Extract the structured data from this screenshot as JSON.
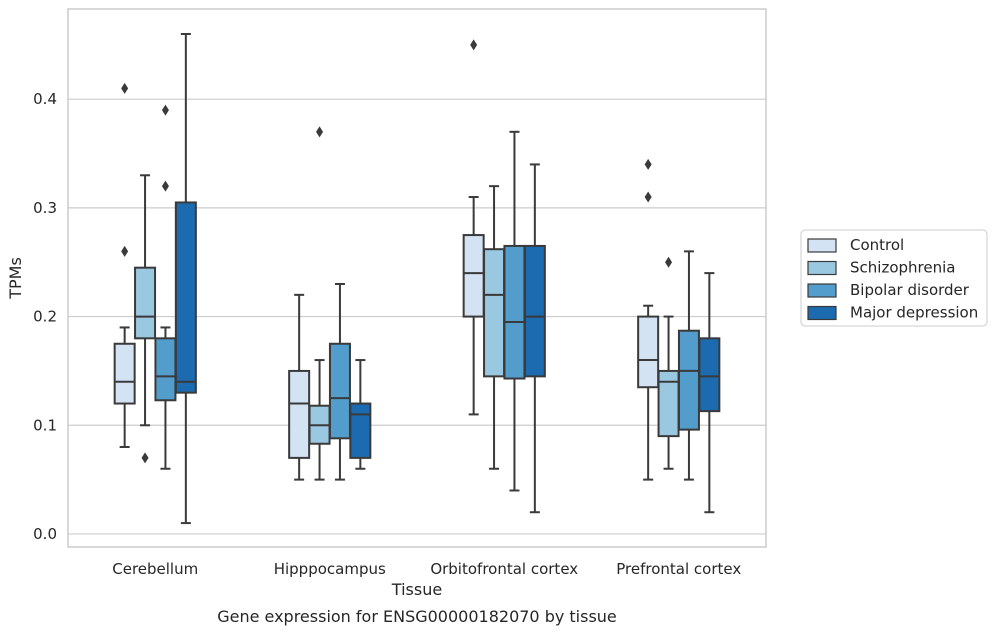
{
  "chart_data": {
    "type": "box",
    "caption": "Gene expression for ENSG00000182070 by tissue",
    "xlabel": "Tissue",
    "ylabel": "TPMs",
    "ylim": [
      -0.012,
      0.483
    ],
    "yticks": [
      0.0,
      0.1,
      0.2,
      0.3,
      0.4
    ],
    "ytick_labels": [
      "0.0",
      "0.1",
      "0.2",
      "0.3",
      "0.4"
    ],
    "grid": true,
    "legend_position": "right",
    "categories": [
      "Cerebellum",
      "Hipppocampus",
      "Orbitofrontal cortex",
      "Prefrontal cortex"
    ],
    "series": [
      {
        "name": "Control",
        "color": "#d3e3f3",
        "boxes": [
          {
            "whisker_low": 0.08,
            "q1": 0.12,
            "median": 0.14,
            "q3": 0.175,
            "whisker_high": 0.19,
            "outliers": [
              0.26,
              0.41
            ]
          },
          {
            "whisker_low": 0.05,
            "q1": 0.07,
            "median": 0.12,
            "q3": 0.15,
            "whisker_high": 0.22,
            "outliers": []
          },
          {
            "whisker_low": 0.11,
            "q1": 0.2,
            "median": 0.24,
            "q3": 0.275,
            "whisker_high": 0.31,
            "outliers": [
              0.45
            ]
          },
          {
            "whisker_low": 0.05,
            "q1": 0.135,
            "median": 0.16,
            "q3": 0.2,
            "whisker_high": 0.21,
            "outliers": [
              0.31,
              0.34
            ]
          }
        ]
      },
      {
        "name": "Schizophrenia",
        "color": "#9ac8e0",
        "boxes": [
          {
            "whisker_low": 0.1,
            "q1": 0.18,
            "median": 0.2,
            "q3": 0.245,
            "whisker_high": 0.33,
            "outliers": [
              0.07
            ]
          },
          {
            "whisker_low": 0.05,
            "q1": 0.083,
            "median": 0.1,
            "q3": 0.118,
            "whisker_high": 0.16,
            "outliers": [
              0.37
            ]
          },
          {
            "whisker_low": 0.06,
            "q1": 0.145,
            "median": 0.22,
            "q3": 0.262,
            "whisker_high": 0.32,
            "outliers": []
          },
          {
            "whisker_low": 0.06,
            "q1": 0.09,
            "median": 0.14,
            "q3": 0.15,
            "whisker_high": 0.2,
            "outliers": [
              0.25
            ]
          }
        ]
      },
      {
        "name": "Bipolar disorder",
        "color": "#529dcc",
        "boxes": [
          {
            "whisker_low": 0.06,
            "q1": 0.123,
            "median": 0.145,
            "q3": 0.18,
            "whisker_high": 0.19,
            "outliers": [
              0.32,
              0.39
            ]
          },
          {
            "whisker_low": 0.05,
            "q1": 0.088,
            "median": 0.125,
            "q3": 0.175,
            "whisker_high": 0.23,
            "outliers": []
          },
          {
            "whisker_low": 0.04,
            "q1": 0.143,
            "median": 0.195,
            "q3": 0.265,
            "whisker_high": 0.37,
            "outliers": []
          },
          {
            "whisker_low": 0.05,
            "q1": 0.096,
            "median": 0.15,
            "q3": 0.187,
            "whisker_high": 0.26,
            "outliers": []
          }
        ]
      },
      {
        "name": "Major depression",
        "color": "#1c6aaf",
        "boxes": [
          {
            "whisker_low": 0.01,
            "q1": 0.13,
            "median": 0.14,
            "q3": 0.305,
            "whisker_high": 0.46,
            "outliers": []
          },
          {
            "whisker_low": 0.06,
            "q1": 0.07,
            "median": 0.11,
            "q3": 0.12,
            "whisker_high": 0.16,
            "outliers": []
          },
          {
            "whisker_low": 0.02,
            "q1": 0.145,
            "median": 0.2,
            "q3": 0.265,
            "whisker_high": 0.34,
            "outliers": []
          },
          {
            "whisker_low": 0.02,
            "q1": 0.113,
            "median": 0.145,
            "q3": 0.18,
            "whisker_high": 0.24,
            "outliers": []
          }
        ]
      }
    ]
  }
}
